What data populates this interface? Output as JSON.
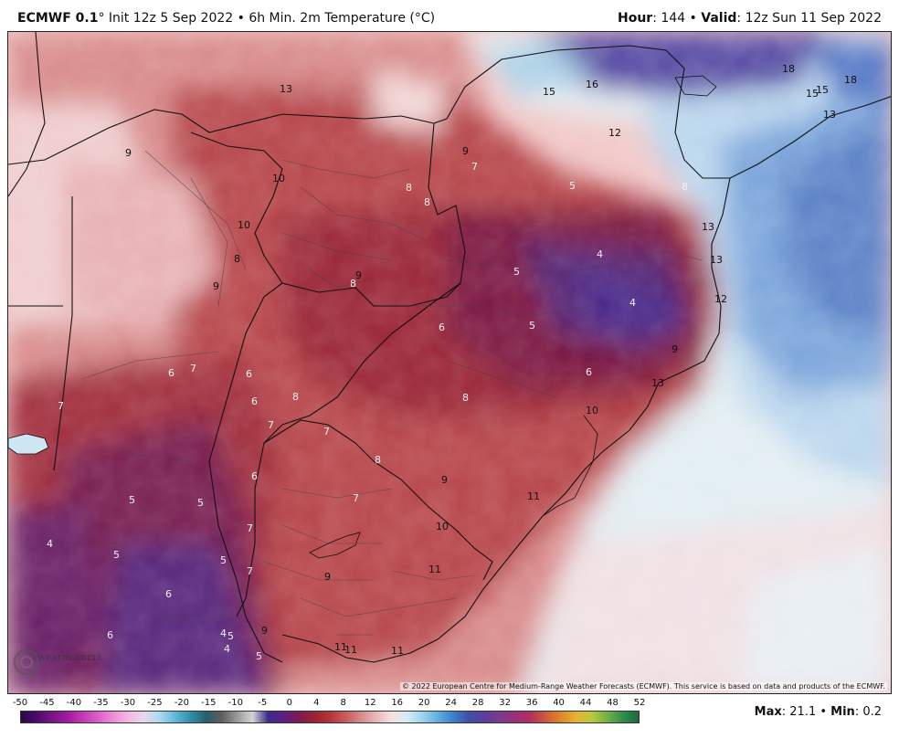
{
  "header": {
    "model": "ECMWF 0.1",
    "degree_symbol": "°",
    "description": " Init 12z 5 Sep 2022 • 6h Min. 2m Temperature (°C)",
    "hour_label": "Hour",
    "hour_value": ": 144 • ",
    "valid_label": "Valid",
    "valid_value": ": 12z Sun 11 Sep 2022"
  },
  "map": {
    "region": "South America (southern Brazil, Paraguay, Uruguay, northern Argentina)",
    "contour_labels": [
      {
        "text": "13"
      },
      {
        "text": "15"
      },
      {
        "text": "16"
      },
      {
        "text": "18"
      },
      {
        "text": "15"
      },
      {
        "text": "15"
      },
      {
        "text": "18"
      },
      {
        "text": "13"
      },
      {
        "text": "12"
      },
      {
        "text": "9"
      },
      {
        "text": "7"
      },
      {
        "text": "5"
      },
      {
        "text": "8"
      },
      {
        "text": "9"
      },
      {
        "text": "10"
      },
      {
        "text": "8"
      },
      {
        "text": "8"
      },
      {
        "text": "10"
      },
      {
        "text": "8"
      },
      {
        "text": "9"
      },
      {
        "text": "8"
      },
      {
        "text": "9"
      },
      {
        "text": "5"
      },
      {
        "text": "4"
      },
      {
        "text": "13"
      },
      {
        "text": "13"
      },
      {
        "text": "12"
      },
      {
        "text": "4"
      },
      {
        "text": "5"
      },
      {
        "text": "6"
      },
      {
        "text": "9"
      },
      {
        "text": "6"
      },
      {
        "text": "13"
      },
      {
        "text": "6"
      },
      {
        "text": "7"
      },
      {
        "text": "6"
      },
      {
        "text": "6"
      },
      {
        "text": "8"
      },
      {
        "text": "7"
      },
      {
        "text": "7"
      },
      {
        "text": "8"
      },
      {
        "text": "7"
      },
      {
        "text": "8"
      },
      {
        "text": "10"
      },
      {
        "text": "9"
      },
      {
        "text": "11"
      },
      {
        "text": "6"
      },
      {
        "text": "7"
      },
      {
        "text": "10"
      },
      {
        "text": "5"
      },
      {
        "text": "5"
      },
      {
        "text": "4"
      },
      {
        "text": "5"
      },
      {
        "text": "7"
      },
      {
        "text": "5"
      },
      {
        "text": "7"
      },
      {
        "text": "9"
      },
      {
        "text": "11"
      },
      {
        "text": "6"
      },
      {
        "text": "6"
      },
      {
        "text": "4"
      },
      {
        "text": "5"
      },
      {
        "text": "4"
      },
      {
        "text": "5"
      },
      {
        "text": "9"
      },
      {
        "text": "11"
      },
      {
        "text": "11"
      },
      {
        "text": "11"
      }
    ],
    "copyright": "© 2022 European Centre for Medium-Range Weather Forecasts (ECMWF). This service is based on data and products of the ECMWF.",
    "logo_text": "WEATHERBELL"
  },
  "colorbar": {
    "ticks": [
      "-50",
      "-45",
      "-40",
      "-35",
      "-30",
      "-25",
      "-20",
      "-15",
      "-10",
      "-5",
      "0",
      "4",
      "8",
      "12",
      "16",
      "20",
      "24",
      "28",
      "32",
      "36",
      "40",
      "44",
      "48",
      "52"
    ],
    "colors": [
      "#2a0a4a",
      "#4a0a6a",
      "#7a1488",
      "#a21aa0",
      "#c637b4",
      "#de5ec8",
      "#ef8ed6",
      "#f5b9e2",
      "#e6d8ef",
      "#a9d9ee",
      "#5fb8d9",
      "#2f8fa8",
      "#275f6c",
      "#5e5e5e",
      "#9a9a9a",
      "#d4d4d4",
      "#3a2c8c",
      "#5b1f86",
      "#7f1a4f",
      "#9c2133",
      "#b5343a",
      "#c85a5a",
      "#d88a8a",
      "#e8b8b8",
      "#f6e2e2",
      "#d4ecf6",
      "#9bd3ee",
      "#5fb0e0",
      "#3c7fcb",
      "#3f4fa8",
      "#5b3e9c",
      "#7b3a8c",
      "#9a2f7a",
      "#b52f5a",
      "#cf5a3a",
      "#e0892a",
      "#e8b431",
      "#b9c93a",
      "#6fb044",
      "#2f8d4c",
      "#1d6a3c"
    ],
    "stats_max_label": "Max",
    "stats_max_value": ": 21.1 • ",
    "stats_min_label": "Min",
    "stats_min_value": ": 0.2"
  }
}
